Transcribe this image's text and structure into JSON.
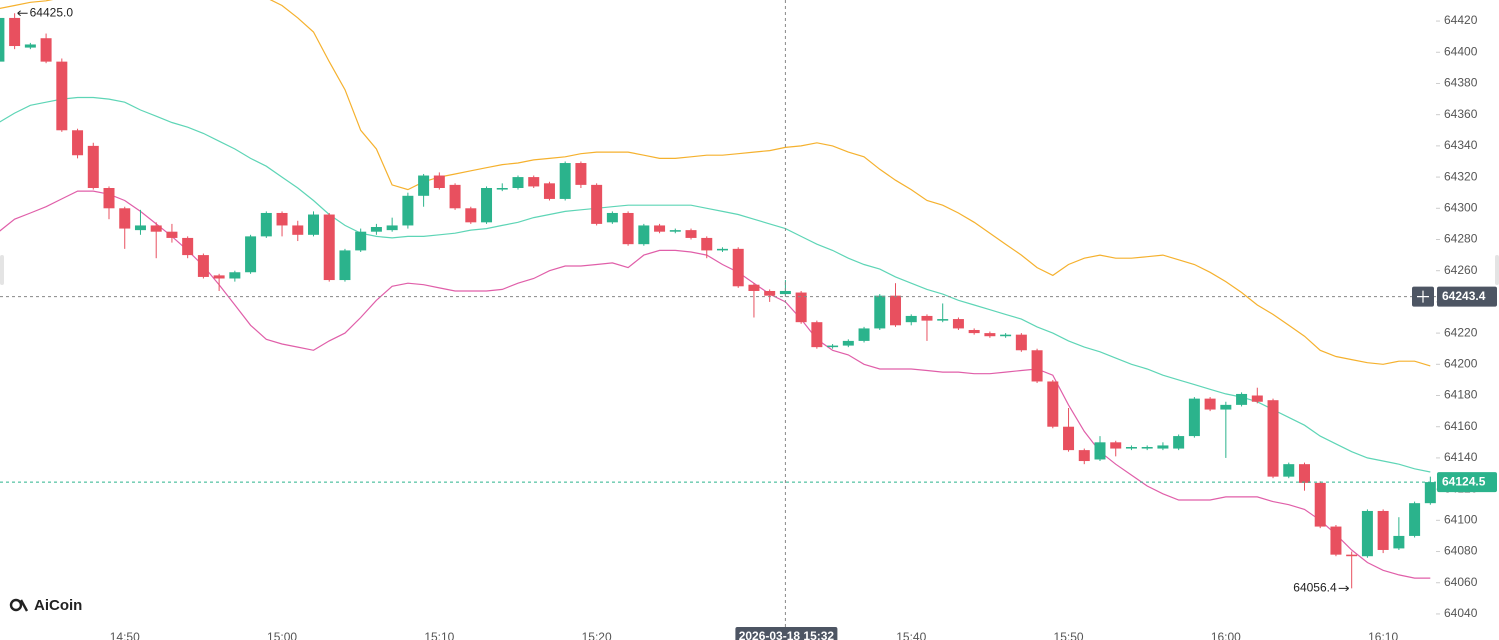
{
  "chart_data": {
    "type": "candlestick",
    "brand": "AiCoin",
    "up_color": "#2bb38c",
    "down_color": "#e8505f",
    "categories": [
      null,
      null,
      null,
      null,
      null,
      null,
      null,
      null,
      "14:50",
      null,
      null,
      null,
      null,
      null,
      null,
      null,
      null,
      null,
      "15:00",
      null,
      null,
      null,
      null,
      null,
      null,
      null,
      null,
      null,
      "15:10",
      null,
      null,
      null,
      null,
      null,
      null,
      null,
      null,
      null,
      "15:20",
      null,
      null,
      null,
      null,
      null,
      null,
      null,
      null,
      null,
      null,
      null,
      null,
      null,
      null,
      null,
      null,
      null,
      null,
      null,
      "15:40",
      null,
      null,
      null,
      null,
      null,
      null,
      null,
      null,
      null,
      "15:50",
      null,
      null,
      null,
      null,
      null,
      null,
      null,
      null,
      null,
      "16:00",
      null,
      null,
      null,
      null,
      null,
      null,
      null,
      null,
      null,
      "16:10",
      null,
      null,
      null
    ],
    "open": [
      64394,
      64422,
      64403,
      64409,
      64394,
      64350,
      64340,
      64313,
      64300,
      64286,
      64289,
      64285,
      64281,
      64270,
      64257,
      64255,
      64259,
      64282,
      64297,
      64289,
      64283,
      64296,
      64254,
      64273,
      64285,
      64286,
      64289,
      64308,
      64321,
      64315,
      64300,
      64291,
      64312,
      64313,
      64320,
      64316,
      64306,
      64329,
      64315,
      64291,
      64297,
      64277,
      64289,
      64285,
      64286,
      64281,
      64273,
      64274,
      64251,
      64247,
      64245,
      64246,
      64227,
      64211,
      64212,
      64215,
      64223,
      64244,
      64227,
      64231,
      64228,
      64229,
      64222,
      64220,
      64218,
      64219,
      64209,
      64189,
      64160,
      64145,
      64139,
      64150,
      64146,
      64146,
      64146,
      64146,
      64154,
      64178,
      64171,
      64174,
      64180,
      64177,
      64128,
      64136,
      64124,
      64096,
      64078,
      64077,
      64106,
      64082,
      64090,
      64111
    ],
    "high": [
      64424,
      64425,
      64406,
      64412,
      64396,
      64351,
      64342,
      64314,
      64301,
      64299,
      64291,
      64290,
      64282,
      64271,
      64258,
      64260,
      64283,
      64298,
      64298,
      64292,
      64298,
      64297,
      64274,
      64287,
      64290,
      64294,
      64310,
      64322,
      64323,
      64316,
      64301,
      64314,
      64316,
      64321,
      64321,
      64317,
      64330,
      64330,
      64316,
      64298,
      64298,
      64290,
      64290,
      64287,
      64287,
      64282,
      64275,
      64275,
      64252,
      64248,
      64254,
      64247,
      64228,
      64213,
      64216,
      64224,
      64245,
      64252,
      64232,
      64232,
      64239,
      64230,
      64223,
      64221,
      64220,
      64220,
      64210,
      64190,
      64172,
      64146,
      64154,
      64151,
      64148,
      64148,
      64150,
      64155,
      64179,
      64179,
      64176,
      64182,
      64185,
      64178,
      64137,
      64137,
      64125,
      64097,
      64080,
      64107,
      64107,
      64102,
      64112,
      64128
    ],
    "low": [
      64392,
      64402,
      64402,
      64393,
      64349,
      64332,
      64312,
      64293,
      64274,
      64283,
      64268,
      64278,
      64268,
      64255,
      64247,
      64253,
      64258,
      64281,
      64282,
      64279,
      64282,
      64253,
      64253,
      64272,
      64283,
      64285,
      64287,
      64301,
      64312,
      64299,
      64290,
      64290,
      64311,
      64312,
      64313,
      64305,
      64305,
      64313,
      64289,
      64290,
      64276,
      64276,
      64284,
      64284,
      64280,
      64268,
      64272,
      64249,
      64230,
      64240,
      64244,
      64226,
      64210,
      64210,
      64211,
      64214,
      64222,
      64224,
      64225,
      64215,
      64227,
      64222,
      64219,
      64217,
      64217,
      64208,
      64188,
      64159,
      64144,
      64136,
      64138,
      64141,
      64145,
      64145,
      64145,
      64145,
      64153,
      64170,
      64140,
      64173,
      64175,
      64127,
      64127,
      64119,
      64095,
      64077,
      64056.4,
      64076,
      64079,
      64081,
      64089,
      64110
    ],
    "close": [
      64422,
      64404,
      64405,
      64394,
      64350,
      64334,
      64313,
      64300,
      64287,
      64289,
      64285,
      64281,
      64270,
      64256,
      64255,
      64259,
      64282,
      64297,
      64289,
      64283,
      64296,
      64254,
      64273,
      64285,
      64288,
      64289,
      64308,
      64321,
      64313,
      64300,
      64291,
      64313,
      64313,
      64320,
      64314,
      64306,
      64329,
      64315,
      64290,
      64297,
      64277,
      64289,
      64285,
      64286,
      64281,
      64273,
      64274,
      64250,
      64247,
      64244,
      64247,
      64227,
      64211,
      64212,
      64215,
      64223,
      64244,
      64225,
      64231,
      64228,
      64229,
      64223,
      64220,
      64218,
      64219,
      64209,
      64189,
      64160,
      64145,
      64138,
      64150,
      64146,
      64147,
      64147,
      64148,
      64154,
      64178,
      64171,
      64174,
      64181,
      64176,
      64128,
      64136,
      64124,
      64096,
      64078,
      64077,
      64106,
      64081,
      64090,
      64111,
      64124.5
    ],
    "lines": [
      {
        "color": "#f5b12e",
        "values": [
          64428,
          64430,
          64432,
          64433,
          64435,
          64437,
          64438,
          64439,
          64440,
          64440,
          64440,
          64440,
          64440,
          64439,
          64439,
          64437,
          64436,
          64435,
          64430,
          64422,
          64413,
          64394,
          64376,
          64350,
          64338,
          64315,
          64312,
          64317,
          64320,
          64322,
          64324,
          64326,
          64328,
          64329,
          64331,
          64332,
          64333,
          64335,
          64336,
          64336,
          64336,
          64334,
          64332,
          64332,
          64333,
          64334,
          64334,
          64335,
          64336,
          64337,
          64339,
          64340,
          64342,
          64340,
          64336,
          64333,
          64325,
          64318,
          64312,
          64305,
          64302,
          64297,
          64291,
          64284,
          64277,
          64270,
          64262,
          64257,
          64264,
          64268,
          64270,
          64268,
          64268,
          64269,
          64270,
          64267,
          64264,
          64259,
          64253,
          64246,
          64238,
          64232,
          64225,
          64218,
          64209,
          64205,
          64203,
          64201,
          64200,
          64202,
          64202,
          64199
        ]
      },
      {
        "color": "#5ed5b6",
        "values": [
          64355,
          64361,
          64366,
          64368,
          64370,
          64371,
          64371,
          64370,
          64368,
          64363,
          64359,
          64355,
          64352,
          64348,
          64343,
          64338,
          64332,
          64327,
          64320,
          64313,
          64305,
          64296,
          64289,
          64284,
          64282,
          64281,
          64282,
          64282,
          64283,
          64284,
          64286,
          64287,
          64289,
          64291,
          64294,
          64296,
          64298,
          64299,
          64300,
          64301,
          64302,
          64302,
          64302,
          64302,
          64302,
          64300,
          64298,
          64296,
          64293,
          64290,
          64287,
          64282,
          64277,
          64273,
          64268,
          64264,
          64261,
          64256,
          64252,
          64248,
          64245,
          64241,
          64238,
          64235,
          64232,
          64229,
          64224,
          64220,
          64215,
          64211,
          64208,
          64204,
          64200,
          64197,
          64193,
          64190,
          64187,
          64184,
          64181,
          64179,
          64176,
          64171,
          64166,
          64161,
          64154,
          64149,
          64144,
          64140,
          64138,
          64136,
          64133,
          64131
        ]
      },
      {
        "color": "#e05fa9",
        "values": [
          64285,
          64293,
          64297,
          64301,
          64306,
          64311,
          64311,
          64309,
          64305,
          64298,
          64290,
          64282,
          64273,
          64263,
          64251,
          64238,
          64225,
          64216,
          64213,
          64211,
          64209,
          64215,
          64220,
          64230,
          64241,
          64250,
          64252,
          64251,
          64249,
          64247,
          64247,
          64247,
          64248,
          64252,
          64255,
          64260,
          64263,
          64263,
          64264,
          64265,
          64262,
          64270,
          64273,
          64273,
          64272,
          64270,
          64264,
          64259,
          64252,
          64245,
          64240,
          64229,
          64216,
          64209,
          64206,
          64200,
          64197,
          64197,
          64197,
          64196,
          64195,
          64195,
          64194,
          64194,
          64195,
          64196,
          64197,
          64193,
          64174,
          64157,
          64144,
          64136,
          64129,
          64122,
          64117,
          64113,
          64113,
          64113,
          64115,
          64115,
          64115,
          64112,
          64110,
          64107,
          64100,
          64091,
          64081,
          64073,
          64068,
          64065,
          64063,
          64063
        ]
      }
    ],
    "ylim": [
      64026.5,
      64433.5
    ],
    "yticks": [
      64040,
      64060,
      64080,
      64100,
      64120,
      64140,
      64160,
      64180,
      64200,
      64220,
      64240,
      64260,
      64280,
      64300,
      64320,
      64340,
      64360,
      64380,
      64400,
      64420
    ],
    "crosshair": {
      "index": 50,
      "price": 64243.4,
      "time_label": "2026-03-18 15:32"
    },
    "last_price": 64124.5,
    "high_mark": {
      "index": 1,
      "value": {
        "value": 64425,
        "label": "64425.0"
      }
    },
    "low_mark": {
      "index": 86,
      "value": 64056.4
    }
  }
}
